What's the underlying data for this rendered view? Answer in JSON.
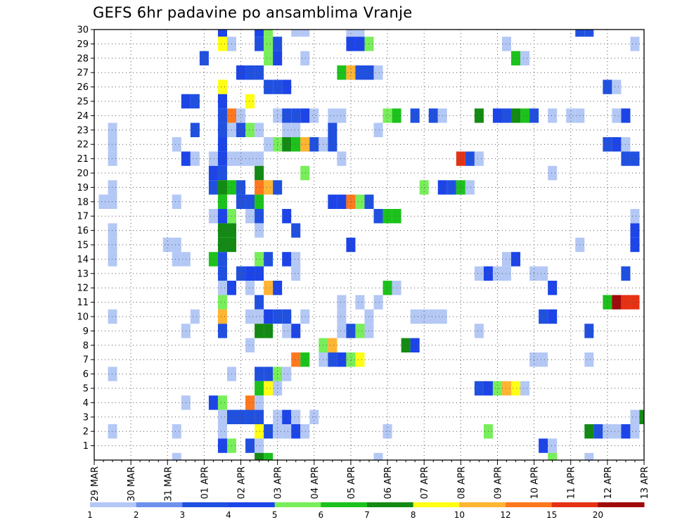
{
  "chart_data": {
    "type": "heatmap",
    "title": "GEFS 6hr padavine po ansamblima Vranje",
    "x_tick_labels": [
      "29 MAR",
      "30 MAR",
      "31 MAR",
      "01 APR",
      "02 APR",
      "03 APR",
      "04 APR",
      "05 APR",
      "06 APR",
      "07 APR",
      "08 APR",
      "09 APR",
      "10 APR",
      "11 APR",
      "12 APR",
      "13 APR"
    ],
    "y_tick_labels": [
      "1",
      "2",
      "3",
      "4",
      "5",
      "6",
      "7",
      "8",
      "9",
      "10",
      "11",
      "12",
      "13",
      "14",
      "15",
      "16",
      "17",
      "18",
      "19",
      "20",
      "21",
      "22",
      "23",
      "24",
      "25",
      "26",
      "27",
      "28",
      "29",
      "30"
    ],
    "x_range_timesteps": [
      0,
      60
    ],
    "y_range_members": [
      0,
      30
    ],
    "grid": true,
    "legend_position": "bottom",
    "legend_boundaries": [
      "1",
      "2",
      "3",
      "4",
      "5",
      "6",
      "7",
      "8",
      "10",
      "12",
      "15",
      "20"
    ],
    "legend_colors": [
      "#b4c8f5",
      "#6e91ee",
      "#2050e0",
      "#1c44e8",
      "#78ee5a",
      "#1cc21c",
      "#138a13",
      "#ffff14",
      "#ffb432",
      "#ff781e",
      "#e63214",
      "#a00a0a"
    ],
    "cells": [
      [
        14,
        30,
        4
      ],
      [
        18,
        30,
        4
      ],
      [
        19,
        30,
        5
      ],
      [
        22,
        30,
        1
      ],
      [
        23,
        30,
        1
      ],
      [
        28,
        30,
        1
      ],
      [
        29,
        30,
        1
      ],
      [
        53,
        30,
        3
      ],
      [
        54,
        30,
        3
      ],
      [
        14,
        29,
        8
      ],
      [
        15,
        29,
        1
      ],
      [
        18,
        29,
        3
      ],
      [
        19,
        29,
        5
      ],
      [
        20,
        29,
        3
      ],
      [
        28,
        29,
        4
      ],
      [
        29,
        29,
        4
      ],
      [
        30,
        29,
        5
      ],
      [
        45,
        29,
        1
      ],
      [
        59,
        29,
        1
      ],
      [
        12,
        28,
        3
      ],
      [
        19,
        28,
        5
      ],
      [
        20,
        28,
        4
      ],
      [
        23,
        28,
        1
      ],
      [
        46,
        28,
        6
      ],
      [
        47,
        28,
        1
      ],
      [
        16,
        27,
        4
      ],
      [
        17,
        27,
        3
      ],
      [
        18,
        27,
        3
      ],
      [
        27,
        27,
        6
      ],
      [
        28,
        27,
        9
      ],
      [
        29,
        27,
        3
      ],
      [
        30,
        27,
        3
      ],
      [
        31,
        27,
        1
      ],
      [
        14,
        26,
        8
      ],
      [
        19,
        26,
        3
      ],
      [
        20,
        26,
        3
      ],
      [
        21,
        26,
        4
      ],
      [
        56,
        26,
        3
      ],
      [
        57,
        26,
        1
      ],
      [
        10,
        25,
        4
      ],
      [
        11,
        25,
        3
      ],
      [
        14,
        25,
        4
      ],
      [
        17,
        25,
        8
      ],
      [
        14,
        24,
        3
      ],
      [
        15,
        24,
        10
      ],
      [
        16,
        24,
        1
      ],
      [
        20,
        24,
        1
      ],
      [
        21,
        24,
        3
      ],
      [
        22,
        24,
        3
      ],
      [
        23,
        24,
        4
      ],
      [
        24,
        24,
        1
      ],
      [
        26,
        24,
        1
      ],
      [
        27,
        24,
        1
      ],
      [
        32,
        24,
        5
      ],
      [
        33,
        24,
        6
      ],
      [
        35,
        24,
        3
      ],
      [
        37,
        24,
        3
      ],
      [
        38,
        24,
        1
      ],
      [
        42,
        24,
        7
      ],
      [
        44,
        24,
        4
      ],
      [
        45,
        24,
        3
      ],
      [
        46,
        24,
        7
      ],
      [
        47,
        24,
        6
      ],
      [
        48,
        24,
        3
      ],
      [
        50,
        24,
        1
      ],
      [
        52,
        24,
        1
      ],
      [
        53,
        24,
        1
      ],
      [
        57,
        24,
        1
      ],
      [
        58,
        24,
        4
      ],
      [
        2,
        23,
        1
      ],
      [
        11,
        23,
        3
      ],
      [
        14,
        23,
        3
      ],
      [
        15,
        23,
        1
      ],
      [
        16,
        23,
        3
      ],
      [
        17,
        23,
        5
      ],
      [
        18,
        23,
        1
      ],
      [
        21,
        23,
        1
      ],
      [
        22,
        23,
        1
      ],
      [
        26,
        23,
        3
      ],
      [
        31,
        23,
        1
      ],
      [
        2,
        22,
        1
      ],
      [
        9,
        22,
        1
      ],
      [
        14,
        22,
        4
      ],
      [
        19,
        22,
        1
      ],
      [
        20,
        22,
        5
      ],
      [
        21,
        22,
        7
      ],
      [
        22,
        22,
        6
      ],
      [
        23,
        22,
        9
      ],
      [
        24,
        22,
        3
      ],
      [
        25,
        22,
        1
      ],
      [
        26,
        22,
        3
      ],
      [
        56,
        22,
        3
      ],
      [
        57,
        22,
        4
      ],
      [
        58,
        22,
        1
      ],
      [
        2,
        21,
        1
      ],
      [
        10,
        21,
        4
      ],
      [
        11,
        21,
        1
      ],
      [
        13,
        21,
        1
      ],
      [
        14,
        21,
        4
      ],
      [
        15,
        21,
        1
      ],
      [
        16,
        21,
        1
      ],
      [
        17,
        21,
        1
      ],
      [
        18,
        21,
        1
      ],
      [
        27,
        21,
        1
      ],
      [
        40,
        21,
        11
      ],
      [
        41,
        21,
        3
      ],
      [
        42,
        21,
        1
      ],
      [
        58,
        21,
        3
      ],
      [
        59,
        21,
        3
      ],
      [
        13,
        20,
        4
      ],
      [
        14,
        20,
        3
      ],
      [
        18,
        20,
        7
      ],
      [
        23,
        20,
        5
      ],
      [
        50,
        20,
        1
      ],
      [
        2,
        19,
        1
      ],
      [
        13,
        19,
        3
      ],
      [
        14,
        19,
        7
      ],
      [
        15,
        19,
        6
      ],
      [
        16,
        19,
        3
      ],
      [
        18,
        19,
        10
      ],
      [
        19,
        19,
        9
      ],
      [
        20,
        19,
        3
      ],
      [
        36,
        19,
        5
      ],
      [
        38,
        19,
        4
      ],
      [
        39,
        19,
        3
      ],
      [
        40,
        19,
        6
      ],
      [
        41,
        19,
        1
      ],
      [
        1,
        18,
        1
      ],
      [
        2,
        18,
        1
      ],
      [
        9,
        18,
        1
      ],
      [
        14,
        18,
        6
      ],
      [
        16,
        18,
        3
      ],
      [
        17,
        18,
        3
      ],
      [
        18,
        18,
        6
      ],
      [
        26,
        18,
        4
      ],
      [
        27,
        18,
        4
      ],
      [
        28,
        18,
        10
      ],
      [
        29,
        18,
        5
      ],
      [
        30,
        18,
        3
      ],
      [
        13,
        17,
        1
      ],
      [
        14,
        17,
        4
      ],
      [
        15,
        17,
        5
      ],
      [
        17,
        17,
        1
      ],
      [
        18,
        17,
        3
      ],
      [
        21,
        17,
        4
      ],
      [
        31,
        17,
        3
      ],
      [
        32,
        17,
        6
      ],
      [
        33,
        17,
        6
      ],
      [
        59,
        17,
        1
      ],
      [
        2,
        16,
        1
      ],
      [
        14,
        16,
        7
      ],
      [
        15,
        16,
        7
      ],
      [
        18,
        16,
        1
      ],
      [
        22,
        16,
        3
      ],
      [
        59,
        16,
        4
      ],
      [
        2,
        15,
        1
      ],
      [
        8,
        15,
        1
      ],
      [
        9,
        15,
        1
      ],
      [
        14,
        15,
        7
      ],
      [
        15,
        15,
        7
      ],
      [
        28,
        15,
        4
      ],
      [
        53,
        15,
        1
      ],
      [
        59,
        15,
        4
      ],
      [
        2,
        14,
        1
      ],
      [
        9,
        14,
        1
      ],
      [
        10,
        14,
        1
      ],
      [
        13,
        14,
        6
      ],
      [
        14,
        14,
        3
      ],
      [
        18,
        14,
        5
      ],
      [
        19,
        14,
        3
      ],
      [
        21,
        14,
        4
      ],
      [
        22,
        14,
        1
      ],
      [
        45,
        14,
        1
      ],
      [
        46,
        14,
        4
      ],
      [
        14,
        13,
        3
      ],
      [
        16,
        13,
        3
      ],
      [
        17,
        13,
        4
      ],
      [
        18,
        13,
        4
      ],
      [
        22,
        13,
        1
      ],
      [
        42,
        13,
        1
      ],
      [
        43,
        13,
        4
      ],
      [
        44,
        13,
        1
      ],
      [
        45,
        13,
        1
      ],
      [
        48,
        13,
        1
      ],
      [
        49,
        13,
        1
      ],
      [
        58,
        13,
        3
      ],
      [
        14,
        12,
        1
      ],
      [
        15,
        12,
        4
      ],
      [
        17,
        12,
        1
      ],
      [
        19,
        12,
        9
      ],
      [
        20,
        12,
        4
      ],
      [
        32,
        12,
        6
      ],
      [
        33,
        12,
        1
      ],
      [
        50,
        12,
        4
      ],
      [
        14,
        11,
        5
      ],
      [
        18,
        11,
        3
      ],
      [
        27,
        11,
        1
      ],
      [
        29,
        11,
        1
      ],
      [
        31,
        11,
        1
      ],
      [
        56,
        11,
        6
      ],
      [
        57,
        11,
        12
      ],
      [
        58,
        11,
        11
      ],
      [
        59,
        11,
        11
      ],
      [
        2,
        10,
        1
      ],
      [
        11,
        10,
        1
      ],
      [
        14,
        10,
        9
      ],
      [
        17,
        10,
        1
      ],
      [
        18,
        10,
        1
      ],
      [
        19,
        10,
        4
      ],
      [
        20,
        10,
        3
      ],
      [
        21,
        10,
        3
      ],
      [
        23,
        10,
        1
      ],
      [
        27,
        10,
        1
      ],
      [
        30,
        10,
        1
      ],
      [
        35,
        10,
        1
      ],
      [
        36,
        10,
        1
      ],
      [
        37,
        10,
        1
      ],
      [
        38,
        10,
        1
      ],
      [
        49,
        10,
        3
      ],
      [
        50,
        10,
        4
      ],
      [
        10,
        9,
        1
      ],
      [
        14,
        9,
        3
      ],
      [
        18,
        9,
        7
      ],
      [
        19,
        9,
        7
      ],
      [
        21,
        9,
        1
      ],
      [
        22,
        9,
        4
      ],
      [
        27,
        9,
        1
      ],
      [
        28,
        9,
        3
      ],
      [
        29,
        9,
        5
      ],
      [
        30,
        9,
        1
      ],
      [
        42,
        9,
        1
      ],
      [
        54,
        9,
        3
      ],
      [
        17,
        8,
        1
      ],
      [
        25,
        8,
        5
      ],
      [
        26,
        8,
        9
      ],
      [
        34,
        8,
        7
      ],
      [
        35,
        8,
        4
      ],
      [
        22,
        7,
        10
      ],
      [
        23,
        7,
        6
      ],
      [
        25,
        7,
        1
      ],
      [
        26,
        7,
        3
      ],
      [
        27,
        7,
        4
      ],
      [
        28,
        7,
        5
      ],
      [
        29,
        7,
        8
      ],
      [
        48,
        7,
        1
      ],
      [
        49,
        7,
        1
      ],
      [
        54,
        7,
        1
      ],
      [
        2,
        6,
        1
      ],
      [
        15,
        6,
        1
      ],
      [
        18,
        6,
        3
      ],
      [
        19,
        6,
        3
      ],
      [
        20,
        6,
        5
      ],
      [
        21,
        6,
        1
      ],
      [
        18,
        5,
        6
      ],
      [
        19,
        5,
        8
      ],
      [
        20,
        5,
        1
      ],
      [
        42,
        5,
        3
      ],
      [
        43,
        5,
        4
      ],
      [
        44,
        5,
        5
      ],
      [
        45,
        5,
        9
      ],
      [
        46,
        5,
        8
      ],
      [
        47,
        5,
        1
      ],
      [
        10,
        4,
        1
      ],
      [
        13,
        4,
        4
      ],
      [
        14,
        4,
        5
      ],
      [
        17,
        4,
        10
      ],
      [
        18,
        4,
        1
      ],
      [
        14,
        3,
        1
      ],
      [
        15,
        3,
        3
      ],
      [
        16,
        3,
        3
      ],
      [
        17,
        3,
        3
      ],
      [
        18,
        3,
        3
      ],
      [
        20,
        3,
        1
      ],
      [
        21,
        3,
        4
      ],
      [
        22,
        3,
        1
      ],
      [
        24,
        3,
        1
      ],
      [
        59,
        3,
        1
      ],
      [
        60,
        3,
        7
      ],
      [
        2,
        2,
        1
      ],
      [
        9,
        2,
        1
      ],
      [
        14,
        2,
        1
      ],
      [
        18,
        2,
        8
      ],
      [
        19,
        2,
        3
      ],
      [
        20,
        2,
        1
      ],
      [
        21,
        2,
        1
      ],
      [
        22,
        2,
        4
      ],
      [
        23,
        2,
        1
      ],
      [
        32,
        2,
        1
      ],
      [
        43,
        2,
        5
      ],
      [
        54,
        2,
        7
      ],
      [
        55,
        2,
        3
      ],
      [
        56,
        2,
        1
      ],
      [
        57,
        2,
        1
      ],
      [
        58,
        2,
        4
      ],
      [
        59,
        2,
        1
      ],
      [
        14,
        1,
        4
      ],
      [
        15,
        1,
        5
      ],
      [
        17,
        1,
        3
      ],
      [
        18,
        1,
        1
      ],
      [
        49,
        1,
        4
      ],
      [
        50,
        1,
        1
      ],
      [
        9,
        0,
        1
      ],
      [
        18,
        0,
        7
      ],
      [
        19,
        0,
        6
      ],
      [
        31,
        0,
        1
      ],
      [
        50,
        0,
        5
      ],
      [
        54,
        0,
        1
      ]
    ]
  }
}
